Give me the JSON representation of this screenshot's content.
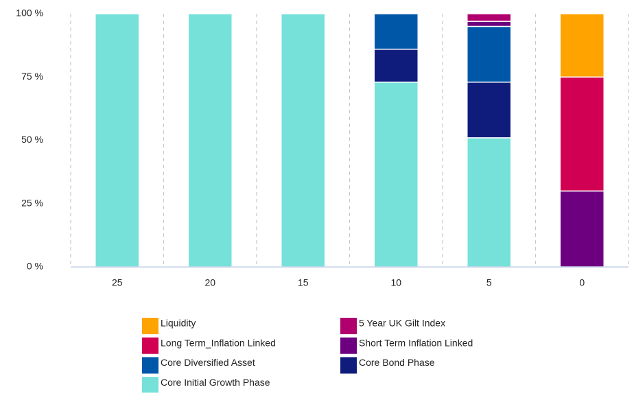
{
  "chart_data": {
    "type": "stacked_bar",
    "categories": [
      "25",
      "20",
      "15",
      "10",
      "5",
      "0"
    ],
    "series": [
      {
        "name": "Liquidity",
        "color": "#ffa300",
        "values": [
          0,
          0,
          0,
          0,
          0,
          25
        ]
      },
      {
        "name": "5 Year UK Gilt Index",
        "color": "#b0006e",
        "values": [
          0,
          0,
          0,
          0,
          3,
          0
        ]
      },
      {
        "name": "Long Term_Inflation Linked",
        "color": "#d20052",
        "values": [
          0,
          0,
          0,
          0,
          0,
          45
        ]
      },
      {
        "name": "Short Term Inflation Linked",
        "color": "#6c007f",
        "values": [
          0,
          0,
          0,
          0,
          2,
          30
        ]
      },
      {
        "name": "Core Diversified Asset",
        "color": "#0057a8",
        "values": [
          0,
          0,
          0,
          14,
          22,
          0
        ]
      },
      {
        "name": "Core Bond Phase",
        "color": "#0f1c7c",
        "values": [
          0,
          0,
          0,
          13,
          22,
          0
        ]
      },
      {
        "name": "Core Initial Growth Phase",
        "color": "#76e1d9",
        "values": [
          100,
          100,
          100,
          73,
          51,
          0
        ]
      }
    ],
    "ylim": [
      0,
      100
    ],
    "yticks": [
      {
        "value": 0,
        "label": "0 %"
      },
      {
        "value": 25,
        "label": "25 %"
      },
      {
        "value": 50,
        "label": "50 %"
      },
      {
        "value": 75,
        "label": "75 %"
      },
      {
        "value": 100,
        "label": "100 %"
      }
    ]
  }
}
